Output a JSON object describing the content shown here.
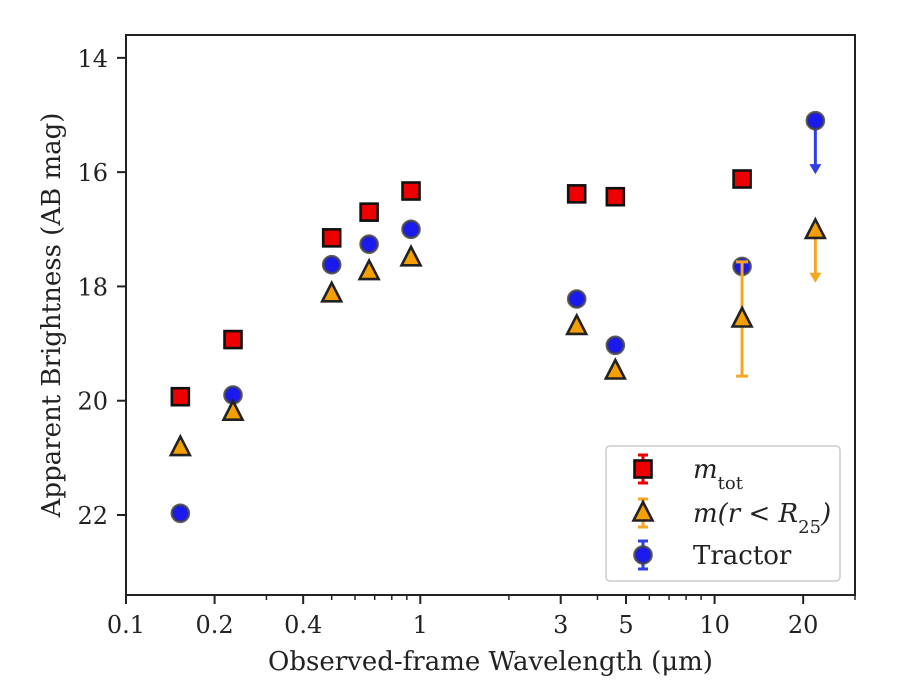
{
  "chart_data": {
    "type": "scatter",
    "title": "",
    "xlabel": "Observed-frame Wavelength (μm)",
    "ylabel": "Apparent Brightness (AB mag)",
    "xscale": "log",
    "xlim": [
      0.1,
      30
    ],
    "ylim": [
      23.4,
      13.6
    ],
    "y_inverted": true,
    "x_ticks": [
      {
        "value": 0.1,
        "label": "0.1"
      },
      {
        "value": 0.2,
        "label": "0.2"
      },
      {
        "value": 0.4,
        "label": "0.4"
      },
      {
        "value": 1,
        "label": "1"
      },
      {
        "value": 3,
        "label": "3"
      },
      {
        "value": 5,
        "label": "5"
      },
      {
        "value": 10,
        "label": "10"
      },
      {
        "value": 20,
        "label": "20"
      }
    ],
    "y_ticks": [
      {
        "value": 14,
        "label": "14"
      },
      {
        "value": 16,
        "label": "16"
      },
      {
        "value": 18,
        "label": "18"
      },
      {
        "value": 20,
        "label": "20"
      },
      {
        "value": 22,
        "label": "22"
      }
    ],
    "grid": false,
    "legend_position": "lower-right",
    "series": [
      {
        "key": "mtot",
        "legend_main": "m",
        "legend_sub": "tot",
        "marker": "square",
        "color": "#ee0000",
        "error_color": "#ee0000",
        "points": [
          {
            "x": 0.153,
            "y": 19.93
          },
          {
            "x": 0.231,
            "y": 18.93
          },
          {
            "x": 0.5,
            "y": 17.15
          },
          {
            "x": 0.67,
            "y": 16.7
          },
          {
            "x": 0.93,
            "y": 16.33
          },
          {
            "x": 3.4,
            "y": 16.38
          },
          {
            "x": 4.6,
            "y": 16.43
          },
          {
            "x": 12.4,
            "y": 16.12
          }
        ]
      },
      {
        "key": "mr25",
        "legend_main": "m(r < R",
        "legend_sub": "25",
        "legend_tail": ")",
        "marker": "triangle",
        "color": "#f59f00",
        "error_color": "#f5a623",
        "points": [
          {
            "x": 0.153,
            "y": 20.82
          },
          {
            "x": 0.231,
            "y": 20.2
          },
          {
            "x": 0.5,
            "y": 18.13
          },
          {
            "x": 0.67,
            "y": 17.74
          },
          {
            "x": 0.93,
            "y": 17.5
          },
          {
            "x": 3.4,
            "y": 18.7
          },
          {
            "x": 4.6,
            "y": 19.48
          },
          {
            "x": 12.4,
            "y": 18.57,
            "yerr_low": 1.0,
            "yerr_high": 1.0
          },
          {
            "x": 22,
            "y": 17.02,
            "upper_limit": true,
            "arrow_to": 17.9
          }
        ]
      },
      {
        "key": "tractor",
        "legend_main": "Tractor",
        "marker": "circle",
        "color": "#1a1aee",
        "error_color": "#2e3fe6",
        "points": [
          {
            "x": 0.153,
            "y": 21.97
          },
          {
            "x": 0.231,
            "y": 19.9
          },
          {
            "x": 0.5,
            "y": 17.62
          },
          {
            "x": 0.67,
            "y": 17.26
          },
          {
            "x": 0.93,
            "y": 17.0
          },
          {
            "x": 3.4,
            "y": 18.22
          },
          {
            "x": 4.6,
            "y": 19.03
          },
          {
            "x": 12.4,
            "y": 17.65
          },
          {
            "x": 22,
            "y": 15.1,
            "upper_limit": true,
            "arrow_to": 16.0
          }
        ]
      }
    ]
  }
}
